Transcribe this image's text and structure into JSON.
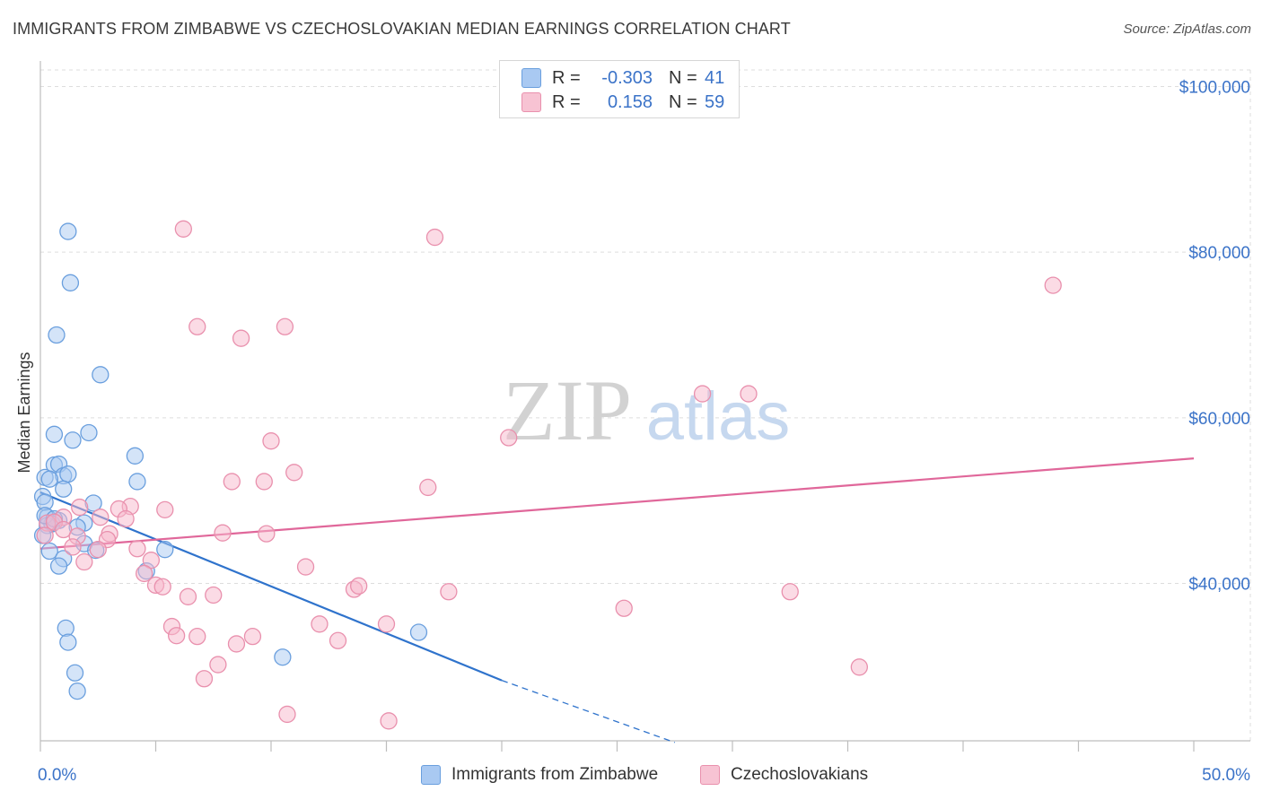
{
  "title": "IMMIGRANTS FROM ZIMBABWE VS CZECHOSLOVAKIAN MEDIAN EARNINGS CORRELATION CHART",
  "source": "Source: ZipAtlas.com",
  "watermark": {
    "zip": "ZIP",
    "atlas": "atlas"
  },
  "colors": {
    "blue_fill": "#a9c9f2",
    "blue_stroke": "#6a9fde",
    "blue_line": "#2f73cc",
    "pink_fill": "#f7b8cb",
    "pink_stroke": "#e990ad",
    "pink_line": "#e0679a",
    "axis_text": "#3b73c8",
    "grid": "#dddddd"
  },
  "legend": {
    "rows": [
      {
        "r_label": "R =",
        "r_value": "-0.303",
        "n_label": "N =",
        "n_value": "41",
        "color": "blue"
      },
      {
        "r_label": "R =",
        "r_value": "0.158",
        "n_label": "N =",
        "n_value": "59",
        "color": "pink"
      }
    ]
  },
  "bottom_legend": {
    "blue": "Immigrants from Zimbabwe",
    "pink": "Czechoslovakians"
  },
  "chart_data": {
    "type": "scatter",
    "title": "IMMIGRANTS FROM ZIMBABWE VS CZECHOSLOVAKIAN MEDIAN EARNINGS CORRELATION CHART",
    "xlabel": "",
    "ylabel": "Median Earnings",
    "xlim": [
      0,
      50
    ],
    "ylim": [
      21000,
      102000
    ],
    "x_tick_labels": [
      "0.0%",
      "50.0%"
    ],
    "y_ticks": [
      40000,
      60000,
      80000,
      100000
    ],
    "y_tick_labels": [
      "$40,000",
      "$60,000",
      "$80,000",
      "$100,000"
    ],
    "grid": true,
    "legend_position": "top-center",
    "series": [
      {
        "name": "Immigrants from Zimbabwe",
        "color": "blue",
        "R": -0.303,
        "N": 41,
        "trend": {
          "x0": 0,
          "y0": 51000,
          "x1": 20,
          "y1": 28300,
          "dashed_to_x": 27.5,
          "dashed_to_y": 20800
        },
        "points": [
          [
            1.2,
            82500
          ],
          [
            1.3,
            76300
          ],
          [
            0.7,
            70000
          ],
          [
            2.6,
            65200
          ],
          [
            0.6,
            58000
          ],
          [
            2.1,
            58200
          ],
          [
            1.4,
            57300
          ],
          [
            4.1,
            55400
          ],
          [
            0.6,
            54300
          ],
          [
            0.8,
            54400
          ],
          [
            1.0,
            53000
          ],
          [
            1.2,
            53200
          ],
          [
            0.2,
            52800
          ],
          [
            0.4,
            52600
          ],
          [
            4.2,
            52300
          ],
          [
            1.0,
            51400
          ],
          [
            0.1,
            50500
          ],
          [
            2.3,
            49700
          ],
          [
            0.2,
            49800
          ],
          [
            0.3,
            48000
          ],
          [
            0.8,
            47600
          ],
          [
            0.5,
            47200
          ],
          [
            0.3,
            47000
          ],
          [
            1.9,
            47300
          ],
          [
            1.6,
            46800
          ],
          [
            0.1,
            45800
          ],
          [
            1.9,
            44800
          ],
          [
            2.4,
            44000
          ],
          [
            0.4,
            43900
          ],
          [
            1.0,
            43000
          ],
          [
            0.8,
            42100
          ],
          [
            4.6,
            41500
          ],
          [
            5.4,
            44100
          ],
          [
            1.1,
            34600
          ],
          [
            1.2,
            32900
          ],
          [
            1.5,
            29200
          ],
          [
            1.6,
            27000
          ],
          [
            10.5,
            31100
          ],
          [
            16.4,
            34100
          ],
          [
            0.2,
            48200
          ],
          [
            0.6,
            47800
          ]
        ]
      },
      {
        "name": "Czechoslovakians",
        "color": "pink",
        "R": 0.158,
        "N": 59,
        "trend": {
          "x0": 0,
          "y0": 44200,
          "x1": 50,
          "y1": 55100
        },
        "points": [
          [
            6.2,
            82800
          ],
          [
            17.1,
            81800
          ],
          [
            43.9,
            76000
          ],
          [
            6.8,
            71000
          ],
          [
            10.6,
            71000
          ],
          [
            8.7,
            69600
          ],
          [
            28.7,
            62900
          ],
          [
            30.7,
            62900
          ],
          [
            10.0,
            57200
          ],
          [
            20.3,
            57600
          ],
          [
            11.0,
            53400
          ],
          [
            8.3,
            52300
          ],
          [
            9.7,
            52300
          ],
          [
            16.8,
            51600
          ],
          [
            3.9,
            49300
          ],
          [
            3.4,
            49000
          ],
          [
            5.4,
            48900
          ],
          [
            1.7,
            49200
          ],
          [
            1.0,
            48000
          ],
          [
            2.6,
            48000
          ],
          [
            3.7,
            47800
          ],
          [
            0.3,
            47300
          ],
          [
            0.6,
            47400
          ],
          [
            0.2,
            45800
          ],
          [
            1.0,
            46500
          ],
          [
            7.9,
            46100
          ],
          [
            9.8,
            46000
          ],
          [
            1.6,
            45700
          ],
          [
            3.0,
            46000
          ],
          [
            2.9,
            45300
          ],
          [
            1.4,
            44400
          ],
          [
            2.5,
            44100
          ],
          [
            4.2,
            44200
          ],
          [
            1.9,
            42600
          ],
          [
            4.8,
            42800
          ],
          [
            11.5,
            42000
          ],
          [
            4.5,
            41200
          ],
          [
            5.0,
            39800
          ],
          [
            5.3,
            39600
          ],
          [
            13.6,
            39300
          ],
          [
            13.8,
            39700
          ],
          [
            17.7,
            39000
          ],
          [
            32.5,
            39000
          ],
          [
            6.4,
            38400
          ],
          [
            7.5,
            38600
          ],
          [
            25.3,
            37000
          ],
          [
            5.7,
            34800
          ],
          [
            5.9,
            33700
          ],
          [
            6.8,
            33600
          ],
          [
            12.1,
            35100
          ],
          [
            15.0,
            35100
          ],
          [
            9.2,
            33600
          ],
          [
            8.5,
            32700
          ],
          [
            12.9,
            33100
          ],
          [
            7.7,
            30200
          ],
          [
            7.1,
            28500
          ],
          [
            35.5,
            29900
          ],
          [
            10.7,
            24200
          ],
          [
            15.1,
            23400
          ]
        ]
      }
    ]
  }
}
